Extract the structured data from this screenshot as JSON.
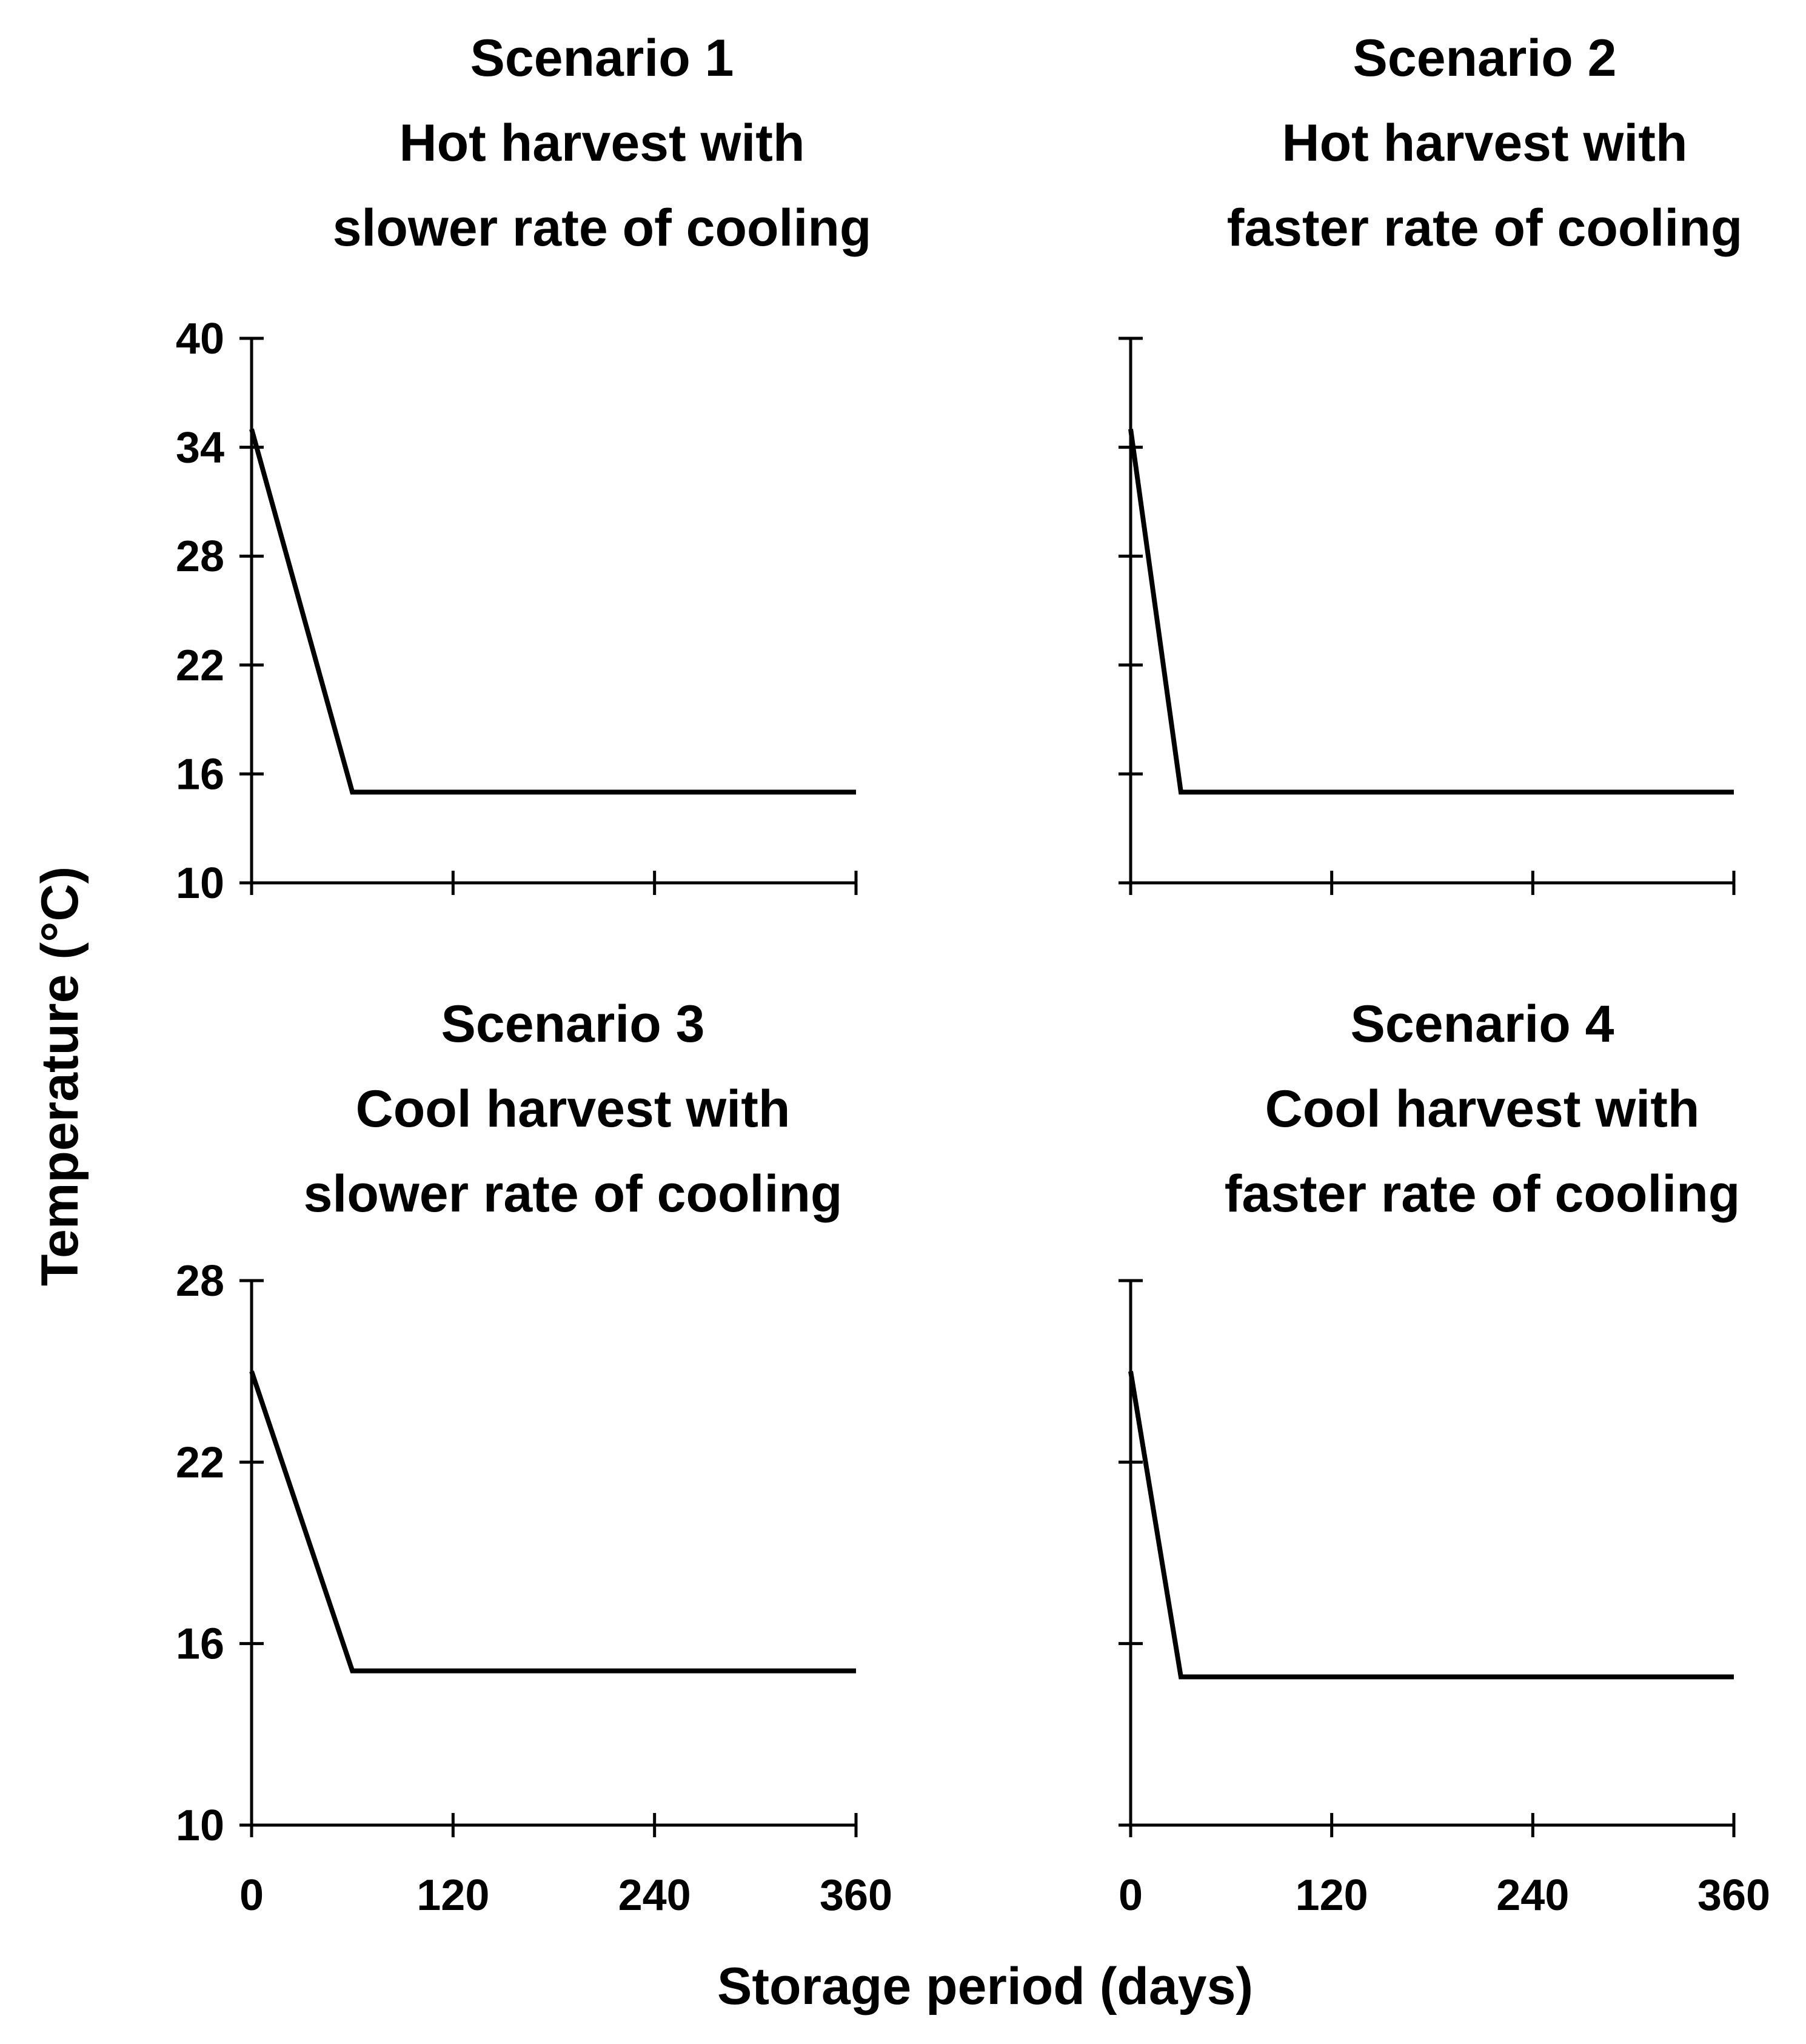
{
  "figure": {
    "y_axis_label": "Temperature (°C)",
    "x_axis_label": "Storage period (days)"
  },
  "chart_data": [
    {
      "type": "line",
      "panel": "top-left",
      "title_lines": [
        "Scenario 1",
        "Hot harvest with",
        "slower rate of cooling"
      ],
      "xlim": [
        0,
        360
      ],
      "ylim": [
        10,
        40
      ],
      "x_ticks": [
        0,
        120,
        240,
        360
      ],
      "y_ticks": [
        10,
        16,
        22,
        28,
        34,
        40
      ],
      "x_tick_labels": [],
      "y_tick_labels": [
        "10",
        "16",
        "22",
        "28",
        "34",
        "40"
      ],
      "series": [
        {
          "name": "Temperature",
          "x": [
            0,
            60,
            360
          ],
          "y": [
            35,
            15,
            15
          ]
        }
      ]
    },
    {
      "type": "line",
      "panel": "top-right",
      "title_lines": [
        "Scenario 2",
        "Hot harvest with",
        "faster rate of cooling"
      ],
      "xlim": [
        0,
        360
      ],
      "ylim": [
        10,
        40
      ],
      "x_ticks": [
        0,
        120,
        240,
        360
      ],
      "y_ticks": [
        10,
        16,
        22,
        28,
        34,
        40
      ],
      "x_tick_labels": [],
      "y_tick_labels": [],
      "series": [
        {
          "name": "Temperature",
          "x": [
            0,
            30,
            360
          ],
          "y": [
            35,
            15,
            15
          ]
        }
      ]
    },
    {
      "type": "line",
      "panel": "bottom-left",
      "title_lines": [
        "Scenario 3",
        "Cool harvest with",
        "slower rate of cooling"
      ],
      "xlim": [
        0,
        360
      ],
      "ylim": [
        10,
        28
      ],
      "x_ticks": [
        0,
        120,
        240,
        360
      ],
      "y_ticks": [
        10,
        16,
        22,
        28
      ],
      "x_tick_labels": [
        "0",
        "120",
        "240",
        "360"
      ],
      "y_tick_labels": [
        "10",
        "16",
        "22",
        "28"
      ],
      "series": [
        {
          "name": "Temperature",
          "x": [
            0,
            60,
            360
          ],
          "y": [
            25,
            15.1,
            15.1
          ]
        }
      ]
    },
    {
      "type": "line",
      "panel": "bottom-right",
      "title_lines": [
        "Scenario 4",
        "Cool harvest with",
        "faster rate of cooling"
      ],
      "xlim": [
        0,
        360
      ],
      "ylim": [
        10,
        28
      ],
      "x_ticks": [
        0,
        120,
        240,
        360
      ],
      "y_ticks": [
        10,
        16,
        22,
        28
      ],
      "x_tick_labels": [
        "0",
        "120",
        "240",
        "360"
      ],
      "y_tick_labels": [],
      "series": [
        {
          "name": "Temperature",
          "x": [
            0,
            30,
            360
          ],
          "y": [
            25,
            14.9,
            14.9
          ]
        }
      ]
    }
  ]
}
